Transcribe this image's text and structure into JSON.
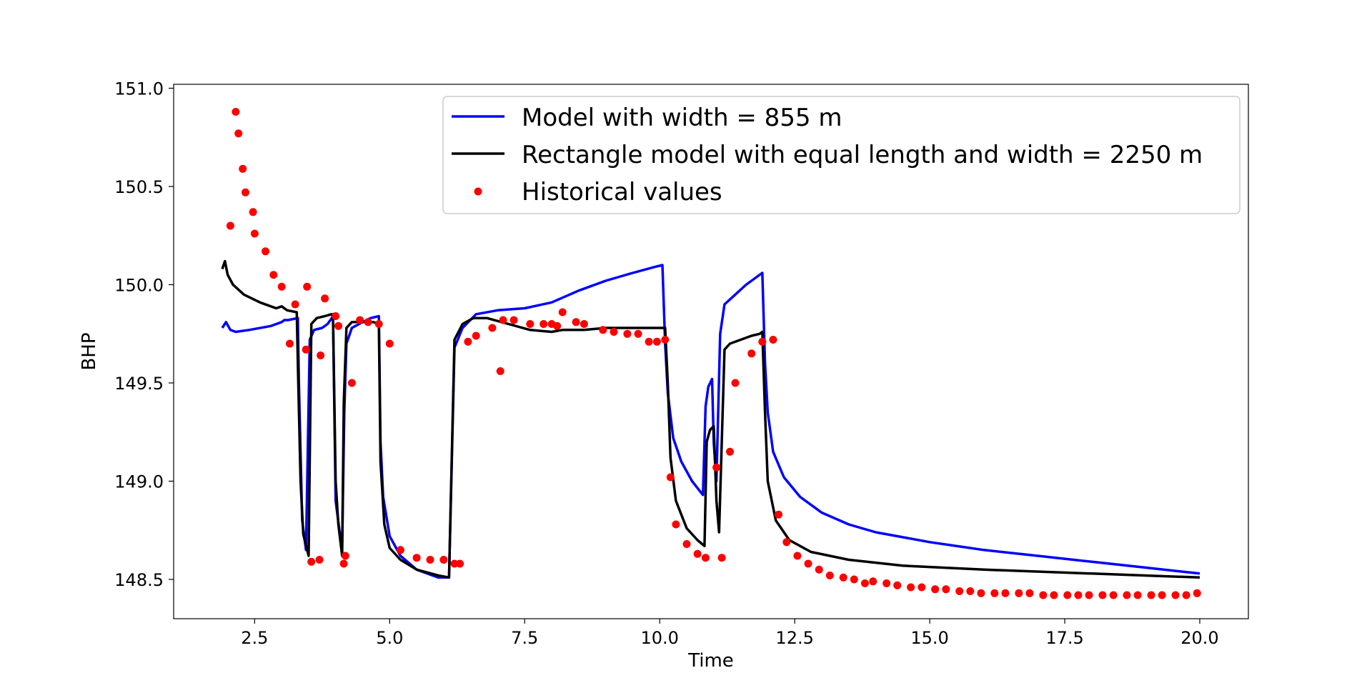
{
  "chart_data": {
    "type": "line",
    "title": "",
    "xlabel": "Time",
    "ylabel": "BHP",
    "xlim": [
      1.0,
      20.9
    ],
    "ylim": [
      148.3,
      151.02
    ],
    "xticks": [
      "2.5",
      "5.0",
      "7.5",
      "10.0",
      "12.5",
      "15.0",
      "17.5",
      "20.0"
    ],
    "yticks": [
      "148.5",
      "149.0",
      "149.5",
      "150.0",
      "150.5",
      "151.0"
    ],
    "grid": false,
    "legend_position": "top-right",
    "colors": {
      "model": "#0000ff",
      "rectangle": "#000000",
      "historical": "#ff0000"
    },
    "series": [
      {
        "name": "Model with width = 855 m",
        "kind": "line",
        "x": [
          1.9,
          1.97,
          2.05,
          2.15,
          2.4,
          2.8,
          3.0,
          3.05,
          3.12,
          3.3,
          3.32,
          3.38,
          3.45,
          3.52,
          3.6,
          3.75,
          3.85,
          3.93,
          3.95,
          4.0,
          4.07,
          4.12,
          4.16,
          4.2,
          4.3,
          4.5,
          4.65,
          4.8,
          4.83,
          4.88,
          5.0,
          5.2,
          5.5,
          5.9,
          6.1,
          6.2,
          6.35,
          6.6,
          7.0,
          7.5,
          8.0,
          8.5,
          9.0,
          9.5,
          9.9,
          10.05,
          10.1,
          10.15,
          10.25,
          10.4,
          10.6,
          10.8,
          10.85,
          10.9,
          10.97,
          11.0,
          11.05,
          11.12,
          11.2,
          11.4,
          11.6,
          11.8,
          11.9,
          11.95,
          12.0,
          12.1,
          12.3,
          12.6,
          13.0,
          13.5,
          14.0,
          15.0,
          16.0,
          17.0,
          18.0,
          19.0,
          20.0
        ],
        "y": [
          149.78,
          149.81,
          149.77,
          149.76,
          149.77,
          149.79,
          149.81,
          149.82,
          149.82,
          149.83,
          149.5,
          148.8,
          148.65,
          149.72,
          149.77,
          149.78,
          149.8,
          149.83,
          149.85,
          148.9,
          148.75,
          148.67,
          149.35,
          149.7,
          149.78,
          149.81,
          149.83,
          149.84,
          149.2,
          148.92,
          148.72,
          148.62,
          148.55,
          148.51,
          148.51,
          149.68,
          149.78,
          149.85,
          149.87,
          149.88,
          149.91,
          149.97,
          150.02,
          150.06,
          150.09,
          150.1,
          149.7,
          149.45,
          149.22,
          149.1,
          149.0,
          148.93,
          149.38,
          149.48,
          149.52,
          149.2,
          149.0,
          149.75,
          149.9,
          149.95,
          150.0,
          150.04,
          150.06,
          149.6,
          149.35,
          149.15,
          149.02,
          148.92,
          148.84,
          148.78,
          148.74,
          148.69,
          148.65,
          148.62,
          148.59,
          148.56,
          148.53
        ]
      },
      {
        "name": "Rectangle model with equal length and width = 2250 m",
        "kind": "line",
        "x": [
          1.9,
          1.95,
          2.0,
          2.1,
          2.3,
          2.6,
          2.9,
          3.0,
          3.1,
          3.28,
          3.3,
          3.35,
          3.4,
          3.5,
          3.55,
          3.65,
          3.8,
          3.92,
          3.95,
          4.0,
          4.05,
          4.12,
          4.15,
          4.2,
          4.3,
          4.5,
          4.7,
          4.8,
          4.83,
          4.9,
          5.0,
          5.2,
          5.5,
          5.9,
          6.1,
          6.2,
          6.35,
          6.55,
          6.8,
          7.2,
          7.6,
          8.0,
          8.2,
          8.6,
          9.0,
          9.5,
          10.0,
          10.1,
          10.15,
          10.2,
          10.3,
          10.5,
          10.7,
          10.83,
          10.87,
          10.93,
          11.0,
          11.05,
          11.1,
          11.2,
          11.3,
          11.5,
          11.7,
          11.85,
          11.9,
          11.95,
          12.0,
          12.15,
          12.4,
          12.8,
          13.5,
          14.5,
          16.0,
          18.0,
          20.0
        ],
        "y": [
          150.08,
          150.12,
          150.05,
          150.0,
          149.95,
          149.91,
          149.88,
          149.89,
          149.87,
          149.86,
          149.6,
          149.0,
          148.73,
          148.62,
          149.8,
          149.83,
          149.84,
          149.85,
          149.84,
          149.0,
          148.78,
          148.62,
          149.4,
          149.78,
          149.81,
          149.81,
          149.81,
          149.8,
          149.1,
          148.78,
          148.66,
          148.6,
          148.55,
          148.52,
          148.51,
          149.72,
          149.8,
          149.83,
          149.83,
          149.8,
          149.77,
          149.76,
          149.77,
          149.77,
          149.78,
          149.78,
          149.78,
          149.78,
          149.5,
          149.12,
          148.9,
          148.76,
          148.7,
          148.67,
          149.2,
          149.26,
          149.28,
          148.9,
          148.74,
          149.67,
          149.7,
          149.72,
          149.74,
          149.75,
          149.76,
          149.35,
          149.0,
          148.8,
          148.7,
          148.64,
          148.6,
          148.57,
          148.55,
          148.53,
          148.51
        ]
      },
      {
        "name": "Historical values",
        "kind": "scatter",
        "x": [
          2.05,
          2.15,
          2.2,
          2.28,
          2.33,
          2.47,
          2.5,
          2.7,
          2.85,
          3.0,
          3.15,
          3.25,
          3.45,
          3.47,
          3.55,
          3.7,
          3.72,
          3.8,
          4.0,
          4.05,
          4.15,
          4.18,
          4.3,
          4.45,
          4.6,
          4.8,
          5.0,
          5.2,
          5.5,
          5.75,
          6.0,
          6.2,
          6.3,
          6.45,
          6.6,
          6.9,
          7.05,
          7.1,
          7.3,
          7.6,
          7.85,
          8.0,
          8.1,
          8.2,
          8.45,
          8.6,
          8.95,
          9.15,
          9.4,
          9.6,
          9.8,
          9.95,
          10.1,
          10.2,
          10.3,
          10.5,
          10.7,
          10.85,
          11.05,
          11.15,
          11.3,
          11.4,
          11.7,
          11.9,
          12.1,
          12.2,
          12.35,
          12.55,
          12.75,
          12.95,
          13.15,
          13.4,
          13.6,
          13.8,
          13.95,
          14.2,
          14.4,
          14.65,
          14.85,
          15.1,
          15.3,
          15.55,
          15.75,
          15.95,
          16.2,
          16.4,
          16.65,
          16.85,
          17.1,
          17.3,
          17.55,
          17.75,
          17.95,
          18.2,
          18.4,
          18.65,
          18.85,
          19.1,
          19.3,
          19.55,
          19.75,
          19.95
        ],
        "y": [
          150.3,
          150.88,
          150.77,
          150.59,
          150.47,
          150.37,
          150.26,
          150.17,
          150.05,
          149.99,
          149.7,
          149.9,
          149.67,
          149.99,
          148.59,
          148.6,
          149.64,
          149.93,
          149.84,
          149.79,
          148.58,
          148.62,
          149.5,
          149.82,
          149.81,
          149.8,
          149.7,
          148.65,
          148.61,
          148.6,
          148.6,
          148.58,
          148.58,
          149.71,
          149.74,
          149.78,
          149.56,
          149.82,
          149.82,
          149.8,
          149.8,
          149.8,
          149.79,
          149.86,
          149.81,
          149.8,
          149.77,
          149.76,
          149.75,
          149.75,
          149.71,
          149.71,
          149.72,
          149.02,
          148.78,
          148.68,
          148.63,
          148.61,
          149.07,
          148.61,
          149.15,
          149.5,
          149.65,
          149.71,
          149.72,
          148.83,
          148.69,
          148.62,
          148.58,
          148.55,
          148.52,
          148.51,
          148.5,
          148.48,
          148.49,
          148.48,
          148.47,
          148.46,
          148.46,
          148.45,
          148.45,
          148.44,
          148.44,
          148.43,
          148.43,
          148.43,
          148.43,
          148.43,
          148.42,
          148.42,
          148.42,
          148.42,
          148.42,
          148.42,
          148.42,
          148.42,
          148.42,
          148.42,
          148.42,
          148.42,
          148.42,
          148.43
        ]
      }
    ]
  }
}
